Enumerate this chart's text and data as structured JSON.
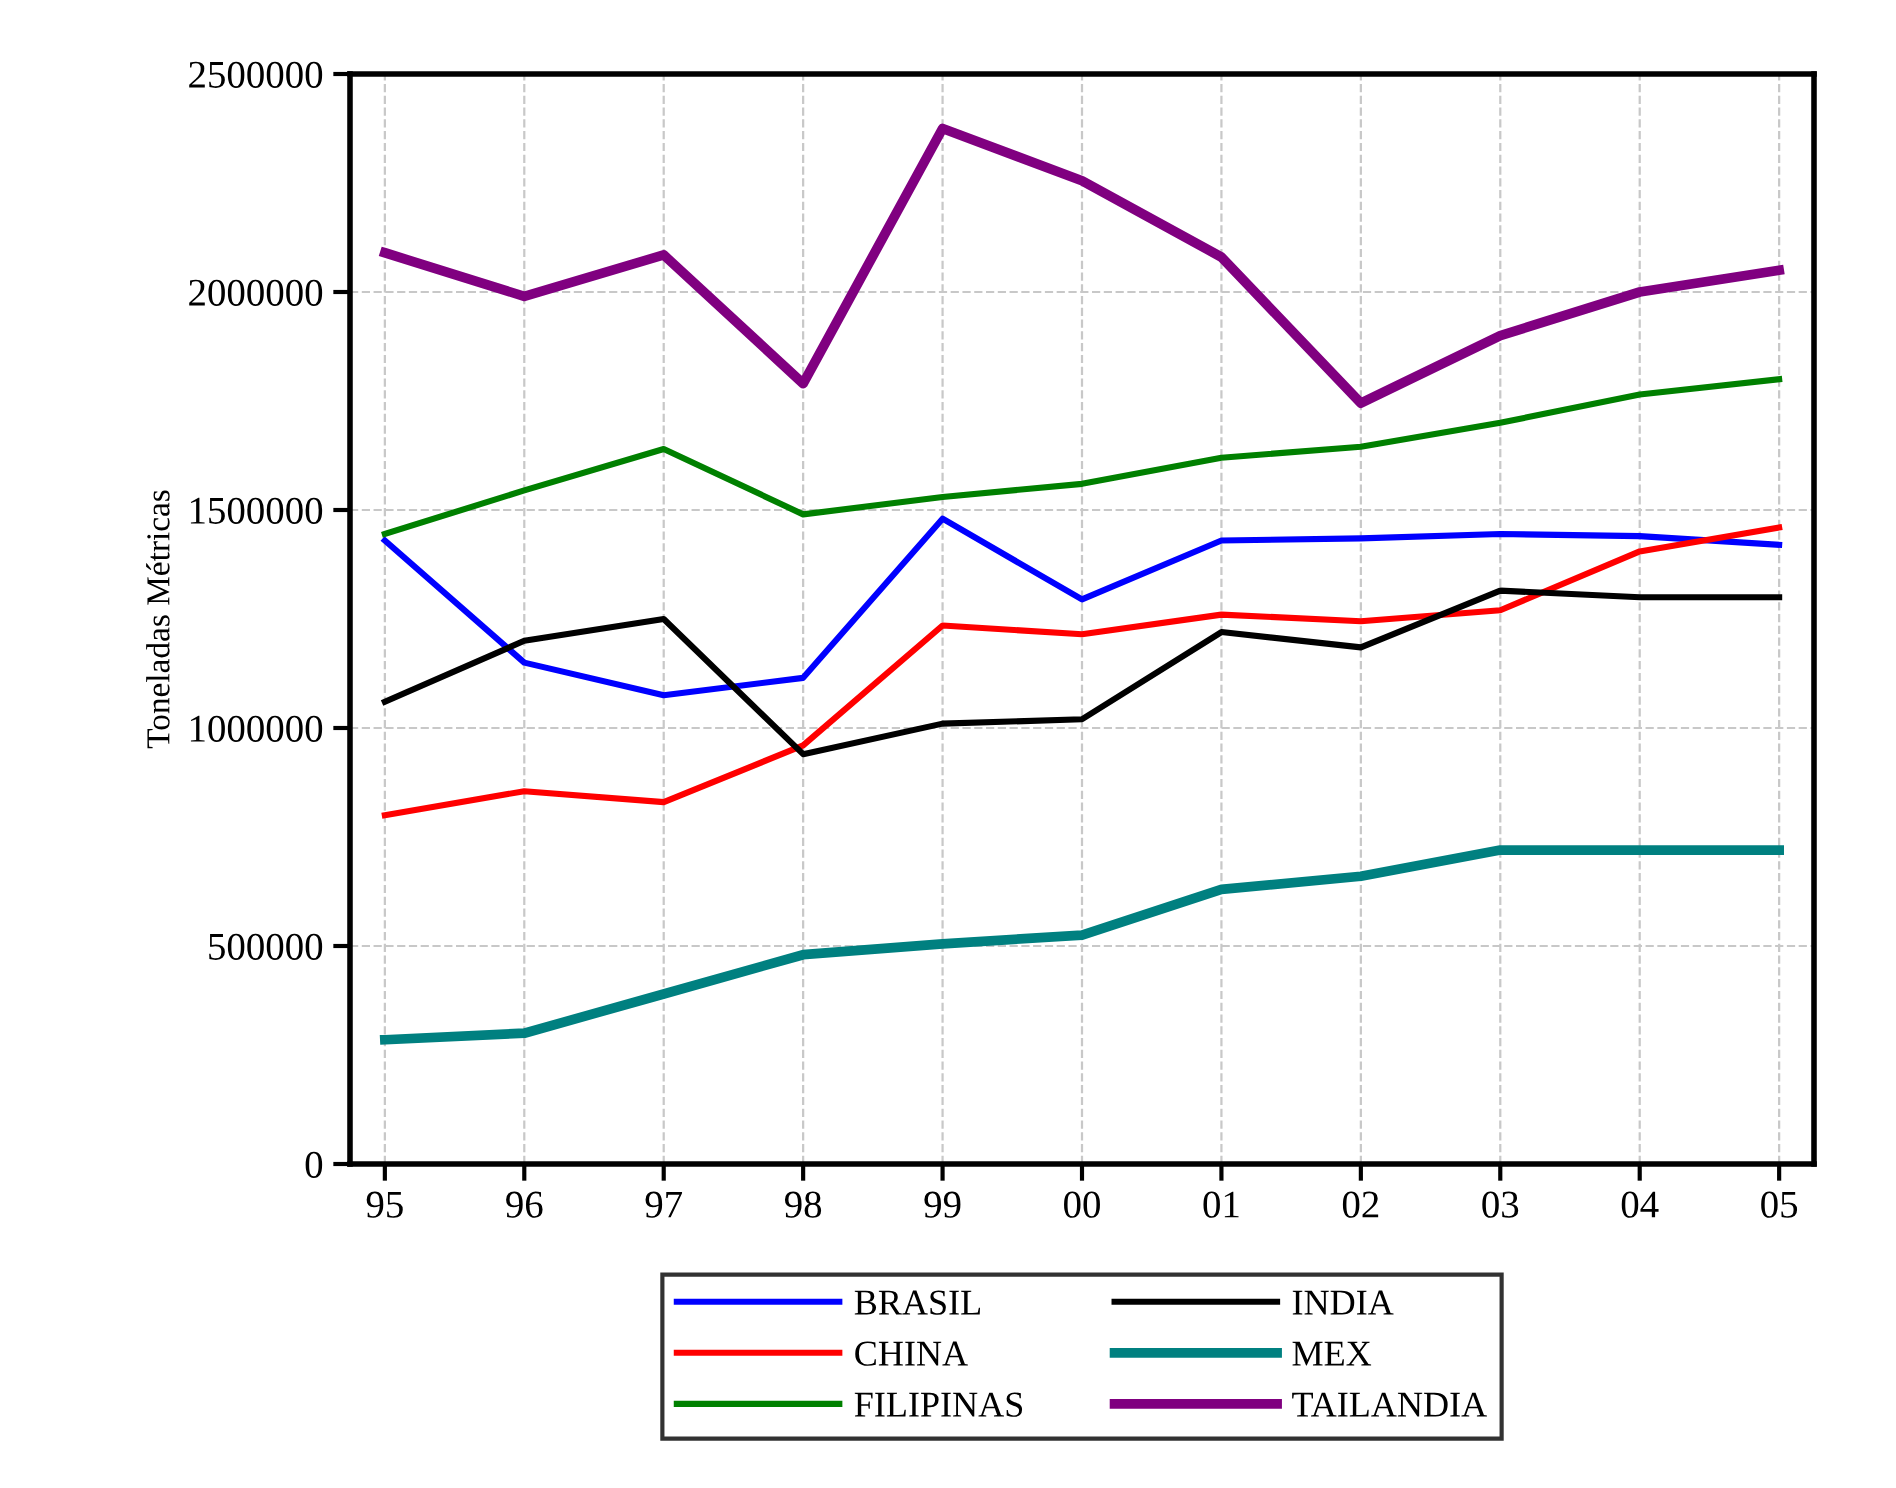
{
  "chart_data": {
    "type": "line",
    "ylabel": "Toneladas Métricas",
    "categories": [
      "95",
      "96",
      "97",
      "98",
      "99",
      "00",
      "01",
      "02",
      "03",
      "04",
      "05"
    ],
    "series": [
      {
        "name": "BRASIL",
        "color": "#0000ff",
        "values": [
          1430000,
          1150000,
          1075000,
          1115000,
          1480000,
          1295000,
          1430000,
          1435000,
          1445000,
          1440000,
          1420000
        ]
      },
      {
        "name": "CHINA",
        "color": "#ff0000",
        "values": [
          800000,
          855000,
          830000,
          960000,
          1235000,
          1215000,
          1260000,
          1245000,
          1270000,
          1405000,
          1460000
        ]
      },
      {
        "name": "FILIPINAS",
        "color": "#008000",
        "values": [
          1445000,
          1545000,
          1640000,
          1490000,
          1530000,
          1560000,
          1620000,
          1645000,
          1700000,
          1765000,
          1800000
        ]
      },
      {
        "name": "INDIA",
        "color": "#000000",
        "values": [
          1060000,
          1200000,
          1250000,
          940000,
          1010000,
          1020000,
          1220000,
          1185000,
          1315000,
          1300000,
          1300000
        ]
      },
      {
        "name": "MEX",
        "color": "#008080",
        "values": [
          285000,
          300000,
          390000,
          480000,
          505000,
          525000,
          630000,
          660000,
          720000,
          720000,
          720000
        ]
      },
      {
        "name": "TAILANDIA",
        "color": "#800080",
        "values": [
          2090000,
          1990000,
          2085000,
          1790000,
          2375000,
          2255000,
          2080000,
          1745000,
          1900000,
          2000000,
          2050000
        ]
      }
    ],
    "ylim": [
      0,
      2500000
    ],
    "yticks": [
      0,
      500000,
      1000000,
      1500000,
      2000000,
      2500000
    ],
    "grid": true,
    "legend": "bottom",
    "line_style": "solid",
    "marker": "none"
  }
}
